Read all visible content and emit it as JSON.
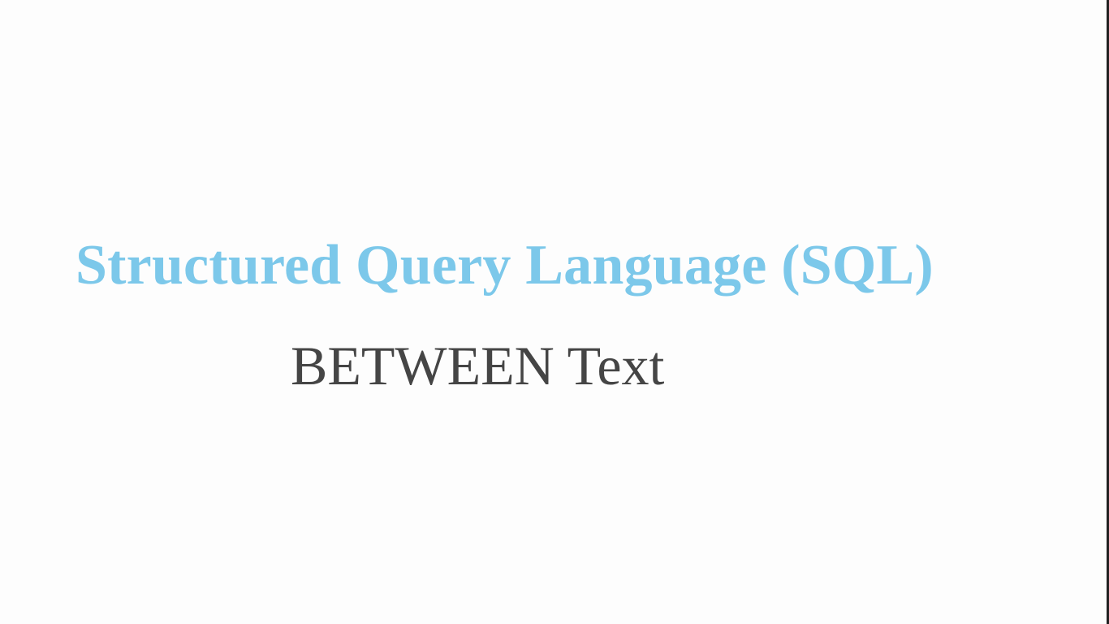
{
  "slide": {
    "title": "Structured Query Language (SQL)",
    "subtitle": "BETWEEN Text"
  },
  "colors": {
    "title": "#7cc8ea",
    "subtitle": "#454545",
    "background": "#fdfdfd",
    "edge": "#222222"
  }
}
